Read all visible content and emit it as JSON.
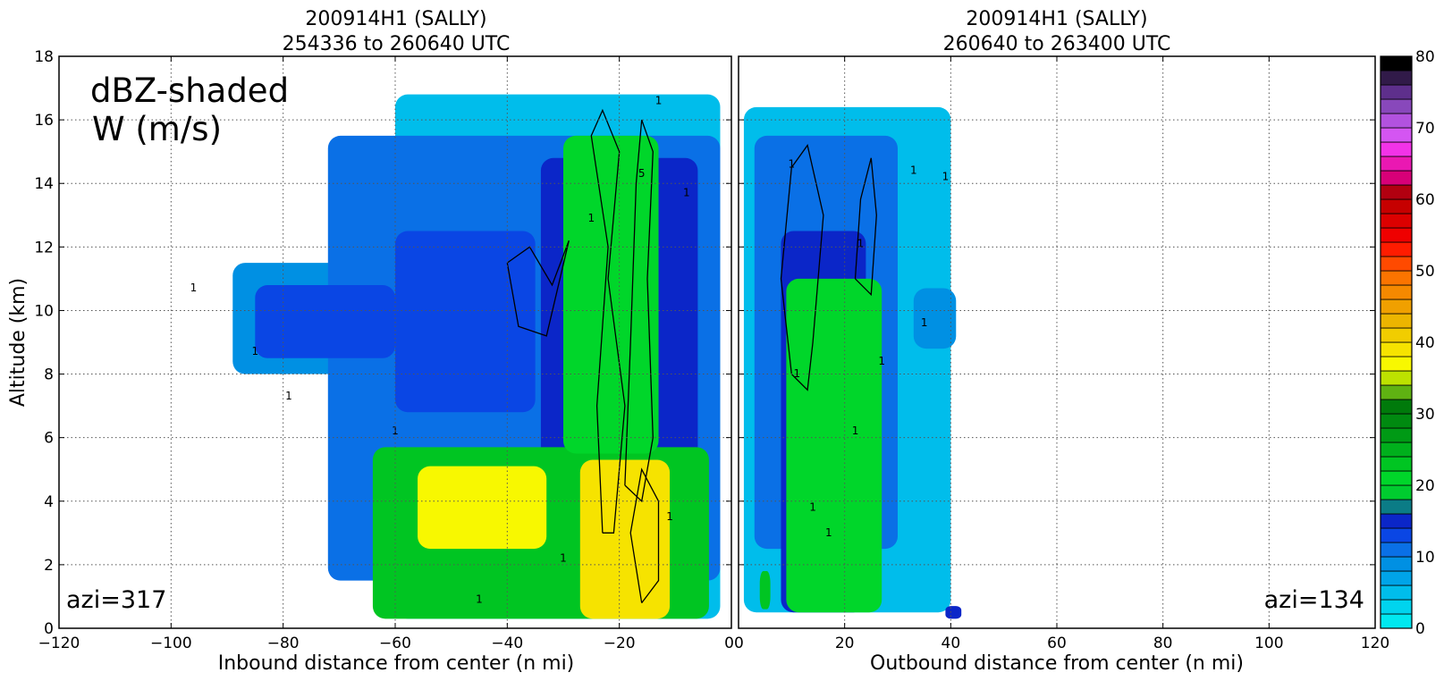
{
  "chart_data": [
    {
      "type": "heatmap",
      "title": "200914H1 (SALLY)",
      "subtitle": "254336 to 260640 UTC",
      "xlabel": "Inbound distance from center (n mi)",
      "ylabel": "Altitude (km)",
      "xlim": [
        -120,
        0
      ],
      "ylim": [
        0,
        18
      ],
      "x_ticks": [
        "−120",
        "−100",
        "−80",
        "−60",
        "−40",
        "−20",
        "0"
      ],
      "x_tick_values": [
        -120,
        -100,
        -80,
        -60,
        -40,
        -20,
        0
      ],
      "y_ticks": [
        "0",
        "2",
        "4",
        "6",
        "8",
        "10",
        "12",
        "14",
        "16",
        "18"
      ],
      "y_tick_values": [
        0,
        2,
        4,
        6,
        8,
        10,
        12,
        14,
        16,
        18
      ],
      "grid": true,
      "annotation_lines": [
        "dBZ-shaded",
        "W (m/s)"
      ],
      "azimuth_label": "azi=317",
      "contour_labels": [
        "1",
        "1",
        "1",
        "1",
        "1",
        "1",
        "1",
        "5",
        "1",
        "1",
        "1"
      ],
      "regions": [
        {
          "x": -60,
          "x2": -2,
          "y": 0.3,
          "y2": 16.8,
          "dbz": 5
        },
        {
          "x": -89,
          "x2": -60,
          "y": 8.0,
          "y2": 11.5,
          "dbz": 8
        },
        {
          "x": -72,
          "x2": -2,
          "y": 1.5,
          "y2": 15.5,
          "dbz": 10
        },
        {
          "x": -85,
          "x2": -60,
          "y": 8.5,
          "y2": 10.8,
          "dbz": 12
        },
        {
          "x": -60,
          "x2": -35,
          "y": 6.8,
          "y2": 12.5,
          "dbz": 13
        },
        {
          "x": -34,
          "x2": -6,
          "y": 4.5,
          "y2": 14.8,
          "dbz": 15
        },
        {
          "x": -64,
          "x2": -4,
          "y": 0.3,
          "y2": 5.7,
          "dbz": 22
        },
        {
          "x": -30,
          "x2": -13,
          "y": 5.5,
          "y2": 15.5,
          "dbz": 20
        },
        {
          "x": -56,
          "x2": -33,
          "y": 2.5,
          "y2": 5.1,
          "dbz": 36
        },
        {
          "x": -27,
          "x2": -11,
          "y": 0.3,
          "y2": 5.3,
          "dbz": 38
        }
      ]
    },
    {
      "type": "heatmap",
      "title": "200914H1 (SALLY)",
      "subtitle": "260640 to 263400 UTC",
      "xlabel": "Outbound distance from center (n mi)",
      "ylabel": "",
      "xlim": [
        0,
        120
      ],
      "ylim": [
        0,
        18
      ],
      "x_ticks": [
        "0",
        "20",
        "40",
        "60",
        "80",
        "100",
        "120"
      ],
      "x_tick_values": [
        0,
        20,
        40,
        60,
        80,
        100,
        120
      ],
      "grid": true,
      "azimuth_label": "azi=134",
      "contour_labels": [
        "1",
        "1",
        "1",
        "1",
        "1",
        "1",
        "1",
        "1",
        "1",
        "1"
      ],
      "regions": [
        {
          "x": 1,
          "x2": 40,
          "y": 0.5,
          "y2": 16.4,
          "dbz": 5
        },
        {
          "x": 3,
          "x2": 30,
          "y": 2.5,
          "y2": 15.5,
          "dbz": 10
        },
        {
          "x": 33,
          "x2": 41,
          "y": 8.8,
          "y2": 10.7,
          "dbz": 9
        },
        {
          "x": 8,
          "x2": 24,
          "y": 0.5,
          "y2": 12.5,
          "dbz": 14
        },
        {
          "x": 9,
          "x2": 27,
          "y": 0.5,
          "y2": 11.0,
          "dbz": 20
        },
        {
          "x": 4,
          "x2": 6,
          "y": 0.6,
          "y2": 1.8,
          "dbz": 22
        },
        {
          "x": 39,
          "x2": 42,
          "y": 0.3,
          "y2": 0.7,
          "dbz": 15
        }
      ]
    }
  ],
  "colorbar": {
    "label_values": [
      "0",
      "10",
      "20",
      "30",
      "40",
      "50",
      "60",
      "70",
      "80"
    ],
    "min": 0,
    "max": 80,
    "colors": [
      "#00e8f0",
      "#00d4ee",
      "#00bdeb",
      "#00a4e8",
      "#0090e3",
      "#0a70e6",
      "#0a46e4",
      "#0b26c8",
      "#0b7c86",
      "#00cc2f",
      "#00d62a",
      "#00c522",
      "#00b01c",
      "#009a15",
      "#008a10",
      "#007a0b",
      "#5fb212",
      "#bde200",
      "#f8f800",
      "#f6e300",
      "#f1cd00",
      "#ecb500",
      "#f0a000",
      "#f58900",
      "#fb7400",
      "#ff4a00",
      "#ff1c00",
      "#ef0000",
      "#dc0000",
      "#c60000",
      "#b20010",
      "#d80078",
      "#ea18b2",
      "#f233e8",
      "#d455f2",
      "#b252df",
      "#8848bb",
      "#5e2f8c",
      "#311a49",
      "#000000"
    ]
  },
  "colors": {
    "grid": "#555555",
    "contour": "#000000",
    "axis": "#000000"
  }
}
